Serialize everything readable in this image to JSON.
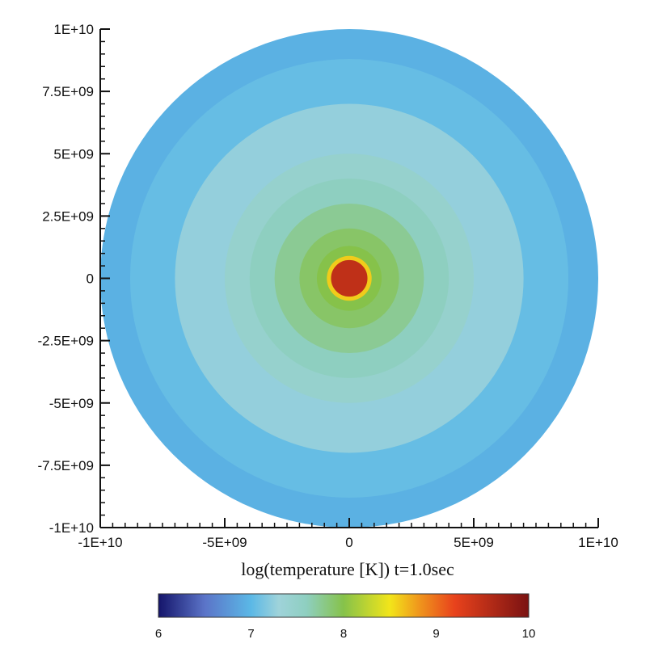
{
  "chart_data": {
    "type": "heatmap",
    "title": "log(temperature [K])  t=1.0sec",
    "x_tick_labels": [
      "-1E+10",
      "-5E+09",
      "0",
      "5E+09",
      "1E+10"
    ],
    "x_tick_values": [
      -10000000000,
      -5000000000,
      0,
      5000000000,
      10000000000
    ],
    "y_tick_labels": [
      "1E+10",
      "7.5E+09",
      "5E+09",
      "2.5E+09",
      "0",
      "-2.5E+09",
      "-5E+09",
      "-7.5E+09",
      "-1E+10"
    ],
    "y_tick_values": [
      10000000000,
      7500000000,
      5000000000,
      2500000000,
      0,
      -2500000000,
      -5000000000,
      -7500000000,
      -10000000000
    ],
    "xlim": [
      -10000000000,
      10000000000
    ],
    "ylim": [
      -10000000000,
      10000000000
    ],
    "field": {
      "center": [
        0,
        0
      ],
      "outer_radius": 10000000000,
      "rings": [
        {
          "r_outer": 10000000000,
          "value": 6.95
        },
        {
          "r_outer": 8800000000,
          "value": 7.05
        },
        {
          "r_outer": 7000000000,
          "value": 7.25
        },
        {
          "r_outer": 5000000000,
          "value": 7.45
        },
        {
          "r_outer": 4000000000,
          "value": 7.6
        },
        {
          "r_outer": 3000000000,
          "value": 7.75
        },
        {
          "r_outer": 2000000000,
          "value": 7.9
        },
        {
          "r_outer": 1300000000,
          "value": 8.0
        },
        {
          "r_outer": 900000000,
          "value": 8.6
        },
        {
          "r_outer": 780000000,
          "value": 9.5
        }
      ]
    },
    "colorbar": {
      "min": 6,
      "max": 10,
      "tick_labels": [
        "6",
        "7",
        "8",
        "9",
        "10"
      ],
      "tick_values": [
        6,
        7,
        8,
        9,
        10
      ],
      "stops": [
        {
          "value": 6.0,
          "color": "#14146a"
        },
        {
          "value": 6.5,
          "color": "#5b74c8"
        },
        {
          "value": 7.0,
          "color": "#5bb8e6"
        },
        {
          "value": 7.3,
          "color": "#9fd3da"
        },
        {
          "value": 7.6,
          "color": "#8ecfc0"
        },
        {
          "value": 8.0,
          "color": "#86c24a"
        },
        {
          "value": 8.5,
          "color": "#f2e51a"
        },
        {
          "value": 8.8,
          "color": "#f09a1c"
        },
        {
          "value": 9.2,
          "color": "#e8421c"
        },
        {
          "value": 10.0,
          "color": "#7a1212"
        }
      ]
    }
  }
}
